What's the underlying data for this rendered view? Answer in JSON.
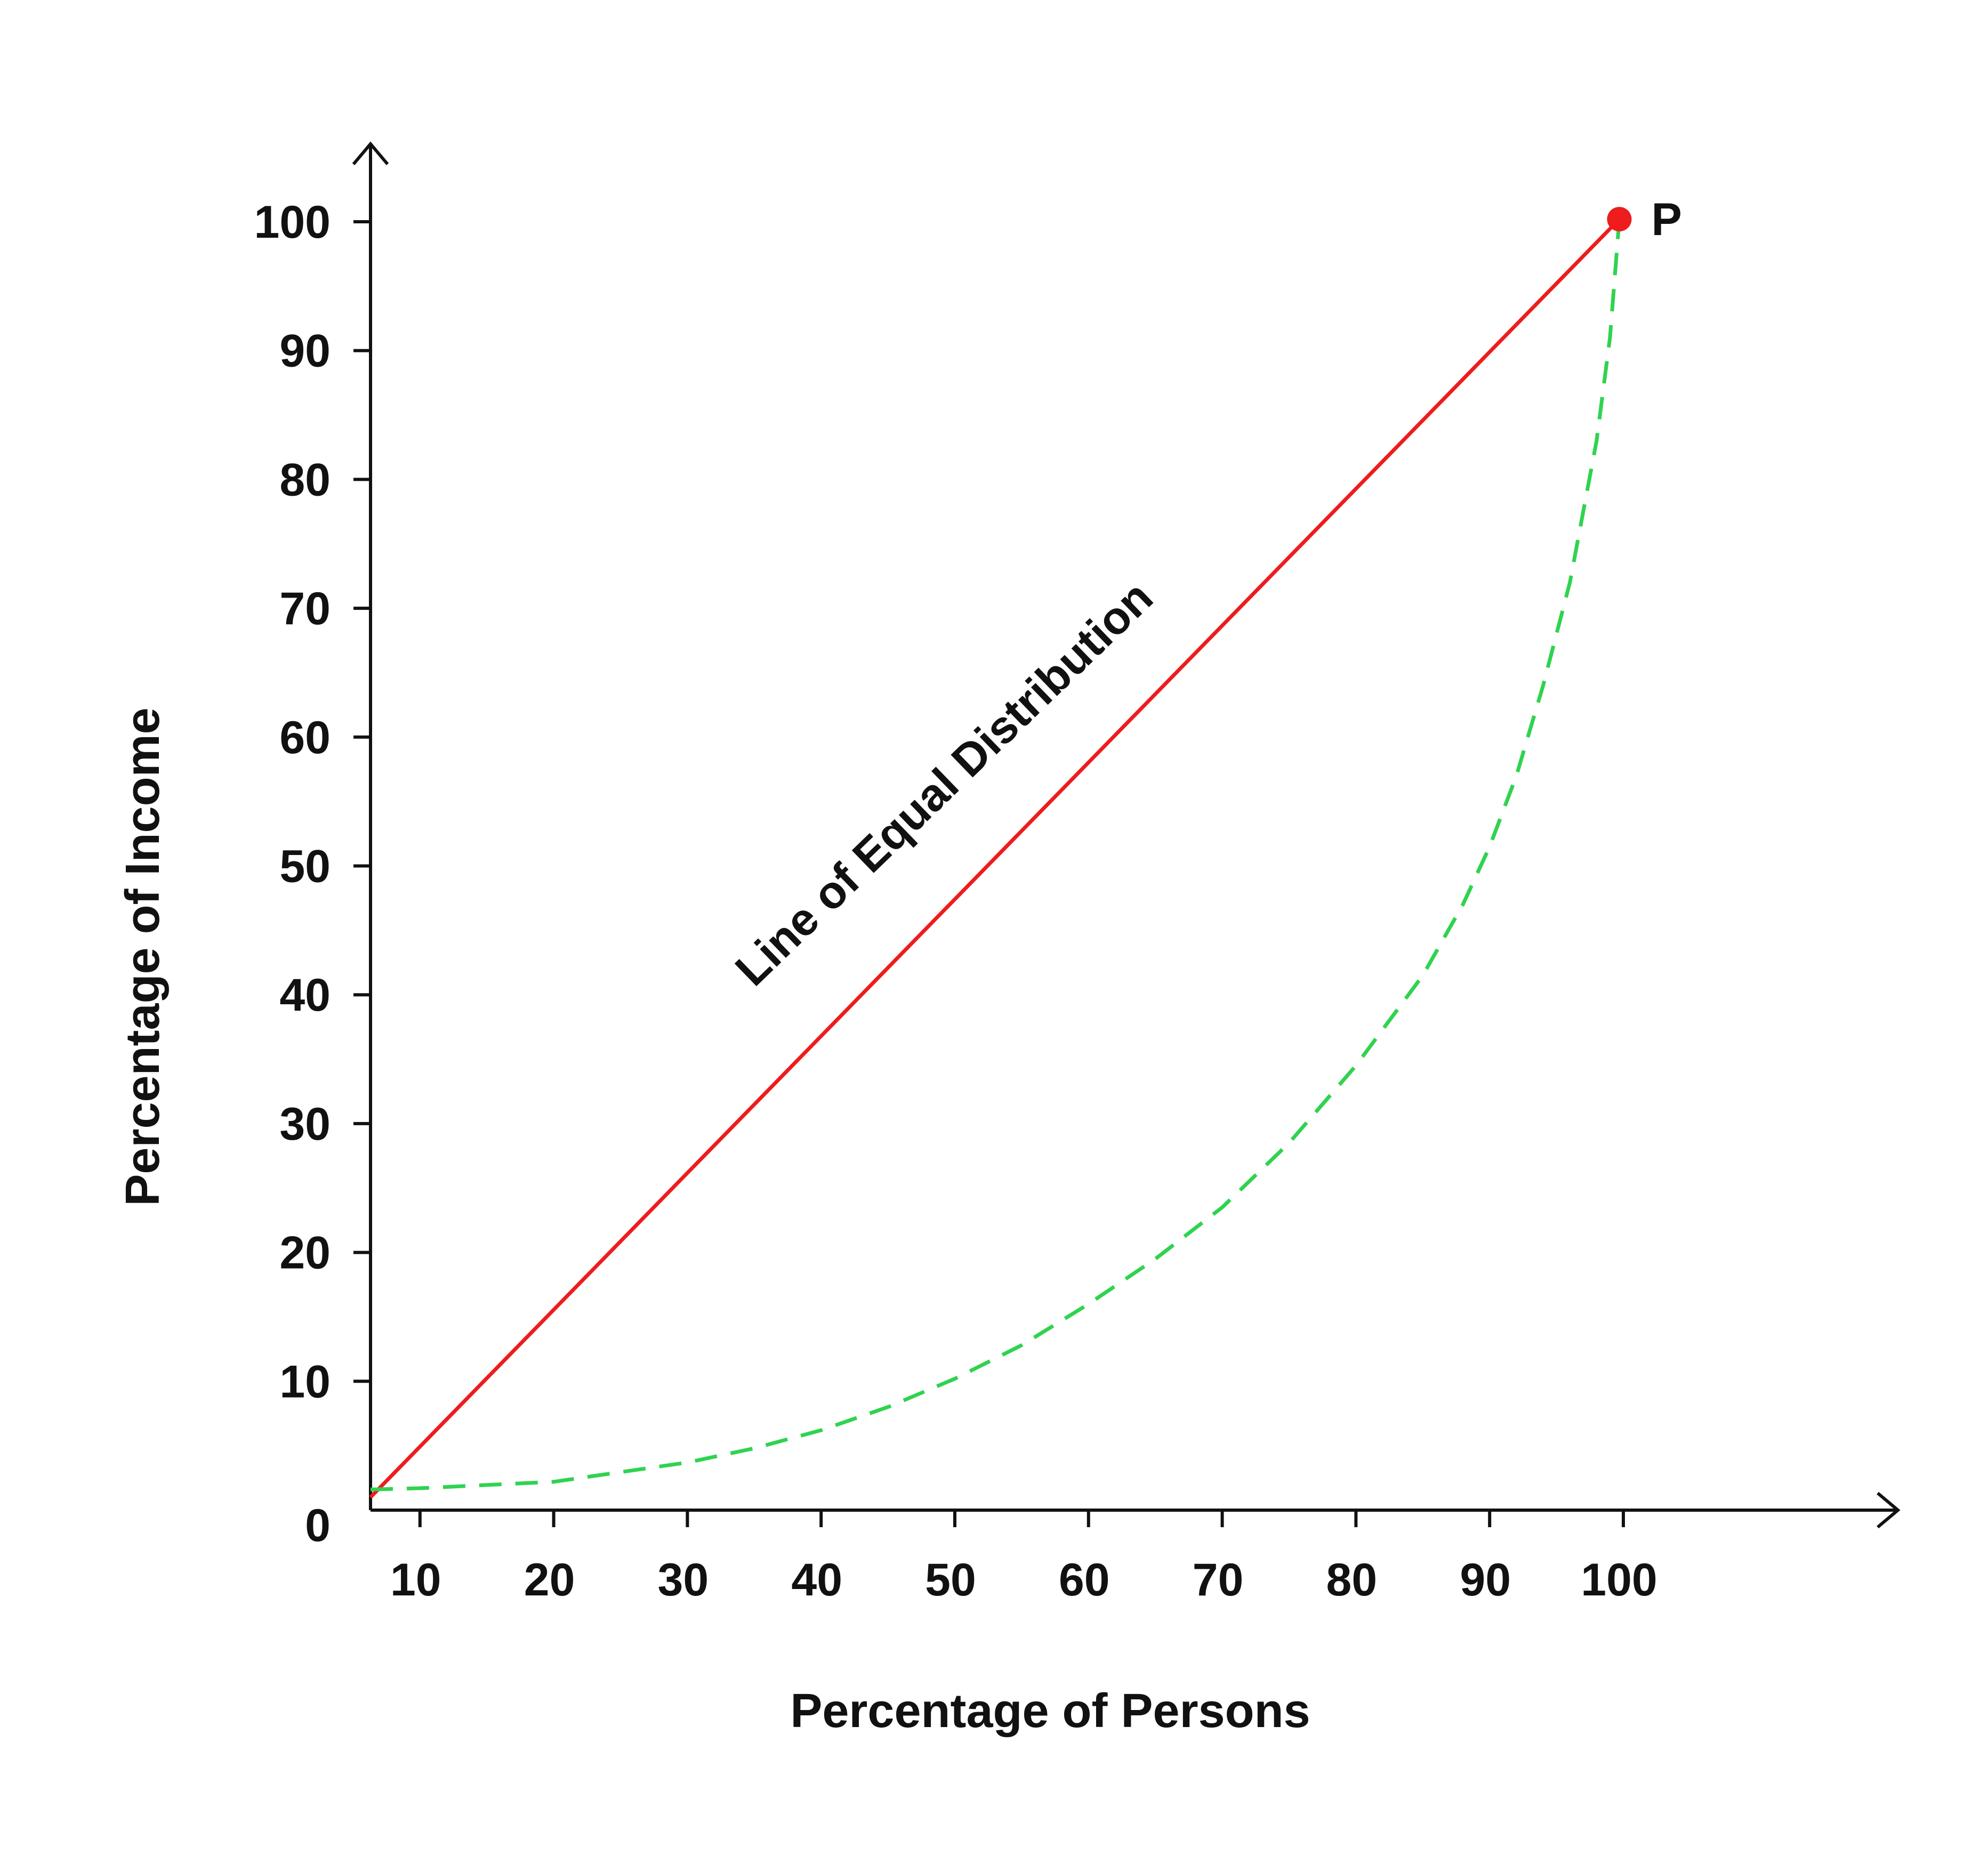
{
  "chart_data": {
    "type": "line",
    "title": "",
    "xlabel": "Percentage of Persons",
    "ylabel": "Percentage of Income",
    "x_ticks": [
      10,
      20,
      30,
      40,
      50,
      60,
      70,
      80,
      90,
      100
    ],
    "y_ticks": [
      0,
      10,
      20,
      30,
      40,
      50,
      60,
      70,
      80,
      90,
      100
    ],
    "xlim": [
      6.3,
      100
    ],
    "ylim": [
      0,
      100
    ],
    "grid": false,
    "series": [
      {
        "name": "Line of Equal Distribution",
        "style": "solid",
        "color": "#ee1c1c",
        "x": [
          6.3,
          99.7
        ],
        "y": [
          1,
          100.2
        ]
      },
      {
        "name": "",
        "style": "dashed",
        "color": "#2fd34f",
        "x": [
          6.3,
          10,
          20,
          30,
          35,
          40,
          45,
          50,
          55,
          60,
          65,
          70,
          75,
          80,
          85,
          88,
          90,
          92,
          94,
          96,
          98,
          99,
          99.7
        ],
        "y": [
          1.6,
          1.7,
          2.2,
          3.7,
          4.8,
          6.2,
          8.0,
          10.2,
          12.8,
          16.0,
          19.5,
          23.5,
          28.5,
          34.5,
          41.5,
          47.0,
          51.5,
          57.0,
          64.0,
          72.0,
          83.0,
          91.0,
          100.2
        ]
      }
    ],
    "annotations": [
      {
        "text": "Line of Equal Distribution",
        "x": 35,
        "y": 40.5,
        "rotation": -44
      },
      {
        "text": "P",
        "x": 99.7,
        "y": 100.2,
        "marker_color": "#ee1c1c"
      }
    ],
    "legend": "none"
  }
}
